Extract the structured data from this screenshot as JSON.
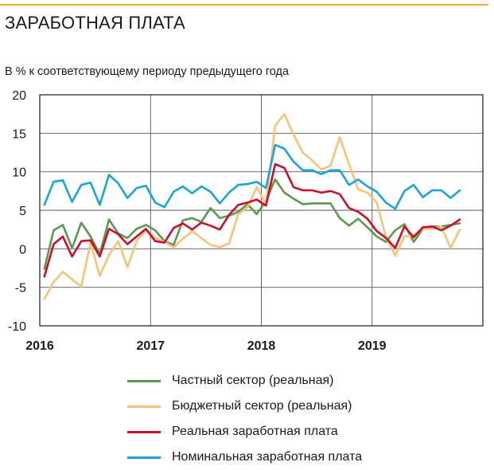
{
  "header": {
    "title": "ЗАРАБОТНАЯ ПЛАТА",
    "subtitle": "В % к соответствующему периоду предыдущего года",
    "rule_color": "#f0b030"
  },
  "chart_data": {
    "type": "line",
    "title": "ЗАРАБОТНАЯ ПЛАТА",
    "ylabel": "В % к соответствующему периоду предыдущего года",
    "xlabel": "",
    "ylim": [
      -10,
      20
    ],
    "y_ticks": [
      -10,
      -5,
      0,
      5,
      10,
      15,
      20
    ],
    "y_tick_labels": [
      "-10",
      "-5",
      "0",
      "5",
      "10",
      "15",
      "20"
    ],
    "x_ticks": [
      "2016",
      "2017",
      "2018",
      "2019"
    ],
    "x_range": [
      "2016-01",
      "2019-12"
    ],
    "grid": "horizontal",
    "legend_position": "bottom",
    "x": [
      "2016-01",
      "2016-02",
      "2016-03",
      "2016-04",
      "2016-05",
      "2016-06",
      "2016-07",
      "2016-08",
      "2016-09",
      "2016-10",
      "2016-11",
      "2016-12",
      "2017-01",
      "2017-02",
      "2017-03",
      "2017-04",
      "2017-05",
      "2017-06",
      "2017-07",
      "2017-08",
      "2017-09",
      "2017-10",
      "2017-11",
      "2017-12",
      "2018-01",
      "2018-02",
      "2018-03",
      "2018-04",
      "2018-05",
      "2018-06",
      "2018-07",
      "2018-08",
      "2018-09",
      "2018-10",
      "2018-11",
      "2018-12",
      "2019-01",
      "2019-02",
      "2019-03",
      "2019-04",
      "2019-05",
      "2019-06",
      "2019-07",
      "2019-08",
      "2019-09",
      "2019-10"
    ],
    "series": [
      {
        "name": "Частный сектор (реальная)",
        "color": "#5b9a4e",
        "values": [
          -2.6,
          2.4,
          3.1,
          0.1,
          3.4,
          1.6,
          -0.7,
          3.8,
          2.0,
          1.4,
          2.6,
          3.1,
          2.4,
          1.0,
          0.5,
          3.7,
          4.0,
          3.5,
          5.3,
          4.0,
          4.3,
          4.8,
          5.8,
          4.5,
          6.2,
          9.0,
          7.3,
          6.5,
          5.8,
          5.9,
          5.9,
          5.9,
          4.0,
          3.0,
          3.9,
          2.8,
          1.6,
          0.9,
          2.4,
          3.2,
          0.9,
          2.6,
          2.9,
          2.9,
          3.1,
          3.3
        ]
      },
      {
        "name": "Бюджетный сектор (реальная)",
        "color": "#f5c37a",
        "values": [
          -6.5,
          -4.3,
          -3.0,
          -4.0,
          -4.9,
          0.8,
          -3.5,
          -0.8,
          1.0,
          -2.4,
          1.0,
          2.4,
          1.4,
          0.9,
          0.2,
          1.3,
          2.3,
          1.4,
          0.5,
          0.2,
          0.7,
          4.5,
          5.4,
          8.0,
          5.8,
          16.0,
          17.5,
          14.8,
          12.5,
          11.5,
          10.3,
          10.8,
          14.5,
          11.0,
          7.7,
          7.3,
          6.0,
          1.5,
          -0.9,
          1.6,
          1.8,
          2.6,
          2.6,
          2.9,
          0.1,
          2.5
        ]
      },
      {
        "name": "Реальная заработная плата",
        "color": "#c8102e",
        "values": [
          -3.6,
          0.6,
          1.6,
          -1.0,
          1.0,
          1.1,
          -1.0,
          2.6,
          1.9,
          0.6,
          1.6,
          2.6,
          1.0,
          0.8,
          2.7,
          3.3,
          2.5,
          3.4,
          3.0,
          2.5,
          4.4,
          5.7,
          6.0,
          6.4,
          5.6,
          11.0,
          10.5,
          8.0,
          7.6,
          7.6,
          7.3,
          7.5,
          7.1,
          5.3,
          4.8,
          3.9,
          2.3,
          1.4,
          0.1,
          2.9,
          1.5,
          2.8,
          2.9,
          2.4,
          3.0,
          3.8
        ]
      },
      {
        "name": "Номинальная заработная плата",
        "color": "#1ba3dc",
        "values": [
          5.7,
          8.7,
          8.9,
          6.1,
          8.3,
          8.6,
          5.7,
          9.6,
          8.5,
          6.6,
          7.9,
          8.2,
          6.0,
          5.4,
          7.4,
          8.1,
          7.2,
          8.1,
          7.4,
          5.9,
          7.3,
          8.3,
          8.4,
          8.7,
          7.9,
          13.5,
          13.0,
          11.3,
          10.2,
          10.2,
          9.7,
          10.2,
          10.2,
          8.3,
          9.0,
          8.1,
          7.4,
          6.0,
          5.2,
          7.5,
          8.3,
          6.7,
          7.6,
          7.6,
          6.6,
          7.6
        ]
      }
    ]
  }
}
